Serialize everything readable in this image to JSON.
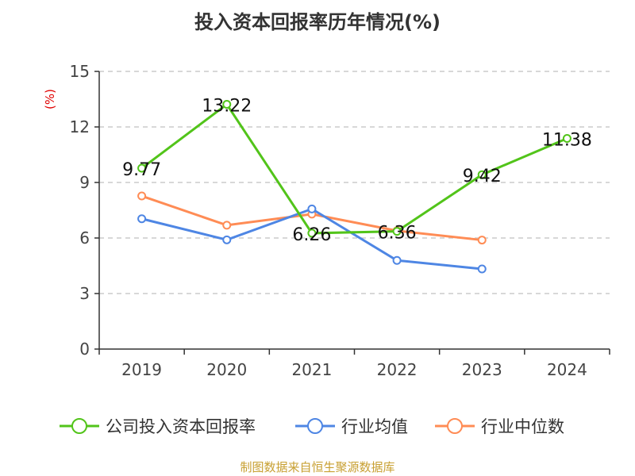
{
  "chart_data": {
    "type": "line",
    "title": "投入资本回报率历年情况(%)",
    "ylabel": "(%)",
    "categories": [
      "2019",
      "2020",
      "2021",
      "2022",
      "2023",
      "2024"
    ],
    "ylim": [
      0,
      15
    ],
    "yticks": [
      0,
      3,
      6,
      9,
      12,
      15
    ],
    "grid": true,
    "legend_position": "bottom",
    "series": [
      {
        "name": "公司投入资本回报率",
        "color": "#52c41a",
        "values": [
          9.77,
          13.22,
          6.26,
          6.36,
          9.42,
          11.38
        ],
        "labels": [
          "9.77",
          "13.22",
          "6.26",
          "6.36",
          "9.42",
          "11.38"
        ]
      },
      {
        "name": "行业均值",
        "color": "#4e86e4",
        "values": [
          7.04,
          5.9,
          7.57,
          4.79,
          4.33,
          null
        ]
      },
      {
        "name": "行业中位数",
        "color": "#ff8c55",
        "values": [
          8.27,
          6.69,
          7.29,
          6.39,
          5.89,
          null
        ]
      }
    ]
  },
  "source": "制图数据来自恒生聚源数据库"
}
